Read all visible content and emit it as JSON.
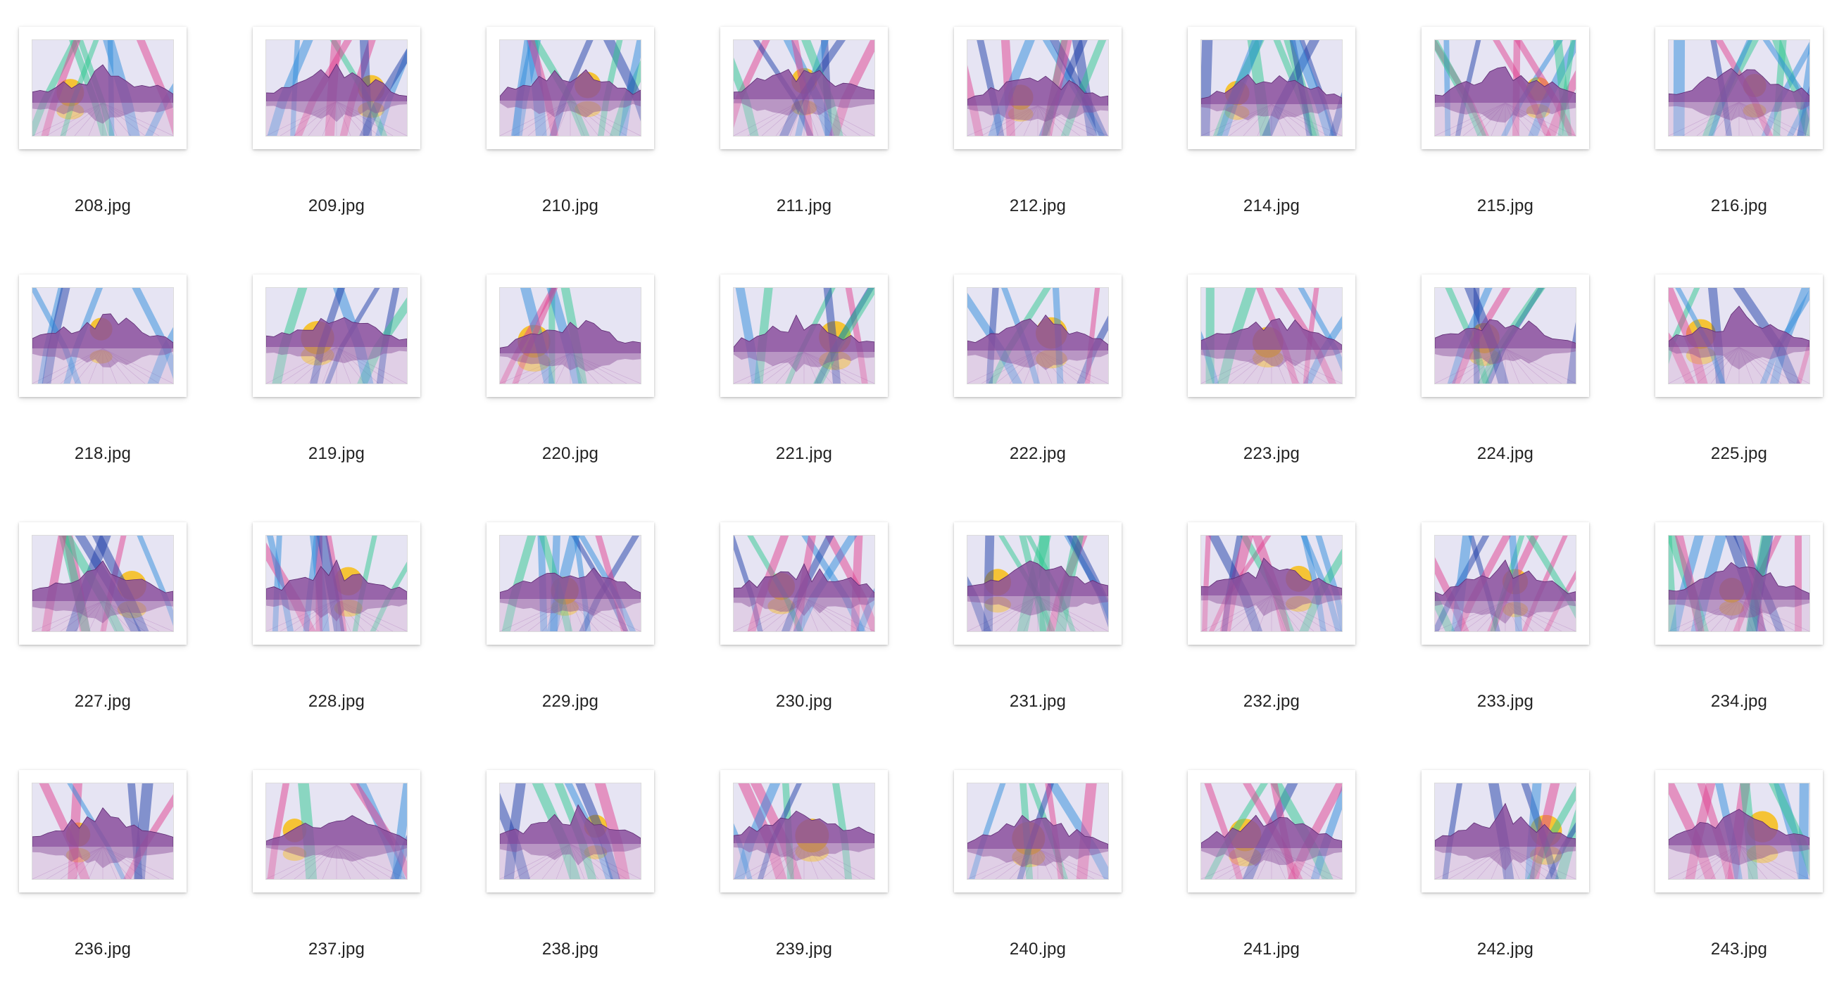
{
  "window": {
    "view": "icon-grid"
  },
  "colors": {
    "background": "#ffffff",
    "filename_text": "#222222",
    "sky": "#e6e4f3",
    "mountain": "#8a4f9c",
    "mountain_dark": "#5d2a72",
    "water": "#e0cfe6",
    "sun": "#f6c026",
    "beams": [
      "#2e8bdc",
      "#e0408f",
      "#2ec88f",
      "#1d3ea8"
    ]
  },
  "files": [
    {
      "name": "208.jpg",
      "icon": "image-thumbnail-icon"
    },
    {
      "name": "209.jpg",
      "icon": "image-thumbnail-icon"
    },
    {
      "name": "210.jpg",
      "icon": "image-thumbnail-icon"
    },
    {
      "name": "211.jpg",
      "icon": "image-thumbnail-icon"
    },
    {
      "name": "212.jpg",
      "icon": "image-thumbnail-icon"
    },
    {
      "name": "214.jpg",
      "icon": "image-thumbnail-icon"
    },
    {
      "name": "215.jpg",
      "icon": "image-thumbnail-icon"
    },
    {
      "name": "216.jpg",
      "icon": "image-thumbnail-icon"
    },
    {
      "name": "218.jpg",
      "icon": "image-thumbnail-icon"
    },
    {
      "name": "219.jpg",
      "icon": "image-thumbnail-icon"
    },
    {
      "name": "220.jpg",
      "icon": "image-thumbnail-icon"
    },
    {
      "name": "221.jpg",
      "icon": "image-thumbnail-icon"
    },
    {
      "name": "222.jpg",
      "icon": "image-thumbnail-icon"
    },
    {
      "name": "223.jpg",
      "icon": "image-thumbnail-icon"
    },
    {
      "name": "224.jpg",
      "icon": "image-thumbnail-icon"
    },
    {
      "name": "225.jpg",
      "icon": "image-thumbnail-icon"
    },
    {
      "name": "227.jpg",
      "icon": "image-thumbnail-icon"
    },
    {
      "name": "228.jpg",
      "icon": "image-thumbnail-icon"
    },
    {
      "name": "229.jpg",
      "icon": "image-thumbnail-icon"
    },
    {
      "name": "230.jpg",
      "icon": "image-thumbnail-icon"
    },
    {
      "name": "231.jpg",
      "icon": "image-thumbnail-icon"
    },
    {
      "name": "232.jpg",
      "icon": "image-thumbnail-icon"
    },
    {
      "name": "233.jpg",
      "icon": "image-thumbnail-icon"
    },
    {
      "name": "234.jpg",
      "icon": "image-thumbnail-icon"
    },
    {
      "name": "236.jpg",
      "icon": "image-thumbnail-icon"
    },
    {
      "name": "237.jpg",
      "icon": "image-thumbnail-icon"
    },
    {
      "name": "238.jpg",
      "icon": "image-thumbnail-icon"
    },
    {
      "name": "239.jpg",
      "icon": "image-thumbnail-icon"
    },
    {
      "name": "240.jpg",
      "icon": "image-thumbnail-icon"
    },
    {
      "name": "241.jpg",
      "icon": "image-thumbnail-icon"
    },
    {
      "name": "242.jpg",
      "icon": "image-thumbnail-icon"
    },
    {
      "name": "243.jpg",
      "icon": "image-thumbnail-icon"
    }
  ]
}
